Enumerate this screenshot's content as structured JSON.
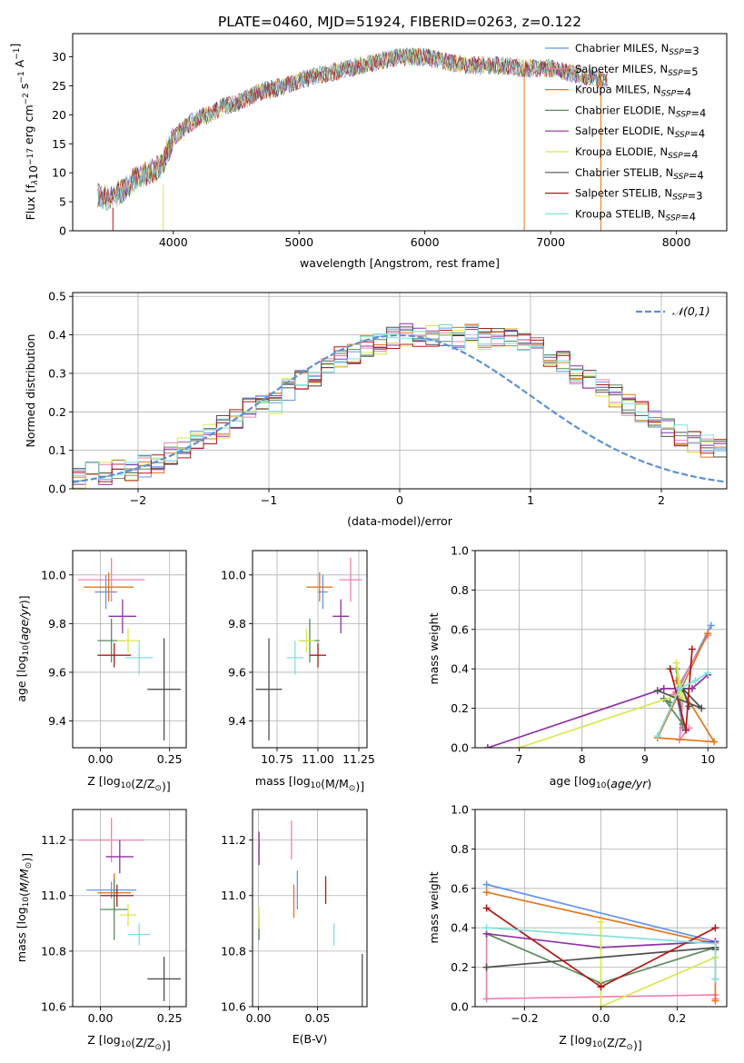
{
  "figure_title": "PLATE=0460, MJD=51924, FIBERID=0263, z=0.122",
  "colors": {
    "chabrier_miles": "#6495ED",
    "salpeter_miles": "#F080B0",
    "kroupa_miles": "#E07820",
    "chabrier_elodie": "#5A8A5A",
    "salpeter_elodie": "#9030A8",
    "kroupa_elodie": "#D8E850",
    "chabrier_stelib": "#505050",
    "salpeter_stelib": "#B01818",
    "kroupa_stelib": "#80E0E0",
    "gauss": "#6090D8",
    "grid": "#B0B0B0"
  },
  "chart_data": [
    {
      "id": "spectrum",
      "type": "line",
      "xlabel": "wavelength [Angstrom, rest frame]",
      "ylabel": "Flux [f",
      "ylabel_parts": [
        "Flux [f",
        "λ",
        "10",
        "−17",
        " erg cm",
        "−2",
        " s",
        "−1",
        " A",
        "−1",
        "]"
      ],
      "xlim": [
        3200,
        8400
      ],
      "ylim": [
        0,
        34
      ],
      "x_ticks": [
        4000,
        5000,
        6000,
        7000,
        8000
      ],
      "y_ticks": [
        0,
        5,
        10,
        15,
        20,
        25,
        30
      ],
      "grid": false,
      "legend_position": "upper-right",
      "series": [
        {
          "name": "Chabrier MILES, N",
          "sub": "SSP",
          "suffix": "=3",
          "color_key": "chabrier_miles"
        },
        {
          "name": "Salpeter MILES, N",
          "sub": "SSP",
          "suffix": "=5",
          "color_key": "salpeter_miles"
        },
        {
          "name": "Kroupa MILES, N",
          "sub": "SSP",
          "suffix": "=4",
          "color_key": "kroupa_miles"
        },
        {
          "name": "Chabrier ELODIE, N",
          "sub": "SSP",
          "suffix": "=4",
          "color_key": "chabrier_elodie"
        },
        {
          "name": "Salpeter ELODIE, N",
          "sub": "SSP",
          "suffix": "=4",
          "color_key": "salpeter_elodie"
        },
        {
          "name": "Kroupa ELODIE, N",
          "sub": "SSP",
          "suffix": "=4",
          "color_key": "kroupa_elodie"
        },
        {
          "name": "Chabrier STELIB, N",
          "sub": "SSP",
          "suffix": "=4",
          "color_key": "chabrier_stelib"
        },
        {
          "name": "Salpeter STELIB, N",
          "sub": "SSP",
          "suffix": "=3",
          "color_key": "salpeter_stelib"
        },
        {
          "name": "Kroupa STELIB, N",
          "sub": "SSP",
          "suffix": "=4",
          "color_key": "kroupa_stelib"
        }
      ],
      "continuum": {
        "x": [
          3400,
          3500,
          3600,
          3700,
          3800,
          3900,
          4000,
          4100,
          4200,
          4300,
          4400,
          4500,
          4600,
          4700,
          4800,
          4900,
          5000,
          5200,
          5400,
          5600,
          5800,
          6000,
          6200,
          6400,
          6600,
          6800,
          7000,
          7200,
          7400
        ],
        "y": [
          6,
          5.5,
          7,
          9,
          10,
          11,
          16,
          18,
          19.5,
          20,
          21.5,
          22,
          23,
          24,
          24.5,
          25,
          26,
          27,
          28,
          29,
          30,
          30,
          29,
          28.5,
          28.5,
          28,
          28,
          27,
          26
        ]
      },
      "spikes": [
        {
          "x": 3520,
          "y_min": 0,
          "y_max": 4,
          "color_key": "salpeter_stelib"
        },
        {
          "x": 3920,
          "y_min": 0,
          "y_max": 8,
          "color_key": "kroupa_elodie"
        },
        {
          "x": 6790,
          "y_min": 0,
          "y_max": 28,
          "color_key": "kroupa_miles"
        },
        {
          "x": 7400,
          "y_min": 0,
          "y_max": 27,
          "color_key": "kroupa_miles"
        }
      ]
    },
    {
      "id": "residuals",
      "type": "step-histogram",
      "xlabel": "(data-model)/error",
      "ylabel": "Normed distribution",
      "xlim": [
        -2.5,
        2.5
      ],
      "ylim": [
        0,
        0.51
      ],
      "x_ticks": [
        -2,
        -1,
        0,
        1,
        2
      ],
      "y_ticks": [
        0.0,
        0.1,
        0.2,
        0.3,
        0.4,
        0.5
      ],
      "grid": true,
      "legend": "𝒩(0,1)",
      "legend_position": "upper-right",
      "bin_width": 0.1,
      "bin_start": -2.5,
      "envelope": [
        0.03,
        0.04,
        0.04,
        0.05,
        0.05,
        0.06,
        0.07,
        0.09,
        0.11,
        0.12,
        0.14,
        0.16,
        0.18,
        0.21,
        0.23,
        0.22,
        0.26,
        0.28,
        0.29,
        0.32,
        0.34,
        0.35,
        0.37,
        0.38,
        0.39,
        0.4,
        0.39,
        0.4,
        0.4,
        0.39,
        0.41,
        0.39,
        0.4,
        0.39,
        0.38,
        0.37,
        0.34,
        0.33,
        0.3,
        0.28,
        0.26,
        0.24,
        0.22,
        0.2,
        0.18,
        0.16,
        0.14,
        0.12,
        0.11,
        0.1,
        0.09,
        0.08,
        0.08,
        0.07,
        0.06,
        0.05,
        0.05,
        0.04,
        0.03,
        0.03,
        0.02,
        0.02,
        0.02,
        0.02,
        0.01,
        0.01,
        0.01,
        0.01,
        0.01,
        0.01
      ]
    },
    {
      "id": "age_vs_Z",
      "type": "errorbar",
      "xlabel": "Z [log",
      "ylabel": "age  [log",
      "xlim": [
        -0.1,
        0.31
      ],
      "ylim": [
        9.29,
        10.1
      ],
      "x_ticks": [
        0.0,
        0.25
      ],
      "y_ticks": [
        9.4,
        9.6,
        9.8,
        10.0
      ],
      "grid": true,
      "points": [
        {
          "color_key": "chabrier_miles",
          "x": 0.02,
          "xerr": 0.04,
          "y": 9.93,
          "yerr": 0.07
        },
        {
          "color_key": "salpeter_miles",
          "x": 0.04,
          "xerr": 0.12,
          "y": 9.98,
          "yerr": 0.09
        },
        {
          "color_key": "kroupa_miles",
          "x": 0.03,
          "xerr": 0.09,
          "y": 9.95,
          "yerr": 0.06
        },
        {
          "color_key": "chabrier_elodie",
          "x": 0.04,
          "xerr": 0.05,
          "y": 9.73,
          "yerr": 0.09
        },
        {
          "color_key": "salpeter_elodie",
          "x": 0.08,
          "xerr": 0.05,
          "y": 9.83,
          "yerr": 0.07
        },
        {
          "color_key": "kroupa_elodie",
          "x": 0.1,
          "xerr": 0.04,
          "y": 9.73,
          "yerr": 0.05
        },
        {
          "color_key": "chabrier_stelib",
          "x": 0.23,
          "xerr": 0.06,
          "y": 9.53,
          "yerr": 0.21
        },
        {
          "color_key": "salpeter_stelib",
          "x": 0.05,
          "xerr": 0.06,
          "y": 9.67,
          "yerr": 0.05
        },
        {
          "color_key": "kroupa_stelib",
          "x": 0.14,
          "xerr": 0.05,
          "y": 9.66,
          "yerr": 0.07
        }
      ]
    },
    {
      "id": "age_vs_mass",
      "type": "errorbar",
      "xlabel": "mass [log",
      "xlim": [
        10.6,
        11.3
      ],
      "ylim": [
        9.29,
        10.1
      ],
      "x_ticks": [
        10.75,
        11.0,
        11.25
      ],
      "y_ticks": [
        9.4,
        9.6,
        9.8,
        10.0
      ],
      "grid": true,
      "points": [
        {
          "color_key": "chabrier_miles",
          "x": 11.03,
          "xerr": 0.03,
          "y": 9.93,
          "yerr": 0.07
        },
        {
          "color_key": "salpeter_miles",
          "x": 11.2,
          "xerr": 0.07,
          "y": 9.98,
          "yerr": 0.09
        },
        {
          "color_key": "kroupa_miles",
          "x": 11.01,
          "xerr": 0.08,
          "y": 9.95,
          "yerr": 0.06
        },
        {
          "color_key": "chabrier_elodie",
          "x": 10.95,
          "xerr": 0.06,
          "y": 9.73,
          "yerr": 0.09
        },
        {
          "color_key": "salpeter_elodie",
          "x": 11.14,
          "xerr": 0.05,
          "y": 9.83,
          "yerr": 0.07
        },
        {
          "color_key": "kroupa_elodie",
          "x": 10.93,
          "xerr": 0.05,
          "y": 9.73,
          "yerr": 0.05
        },
        {
          "color_key": "chabrier_stelib",
          "x": 10.7,
          "xerr": 0.08,
          "y": 9.53,
          "yerr": 0.21
        },
        {
          "color_key": "salpeter_stelib",
          "x": 11.0,
          "xerr": 0.05,
          "y": 9.67,
          "yerr": 0.05
        },
        {
          "color_key": "kroupa_stelib",
          "x": 10.86,
          "xerr": 0.05,
          "y": 9.66,
          "yerr": 0.07
        }
      ]
    },
    {
      "id": "weight_vs_age",
      "type": "line-markers",
      "xlabel": "age  [log",
      "ylabel": "mass weight",
      "xlim": [
        6.3,
        10.3
      ],
      "ylim": [
        0,
        1
      ],
      "x_ticks": [
        7,
        8,
        9,
        10
      ],
      "y_ticks": [
        0.0,
        0.2,
        0.4,
        0.6,
        0.8,
        1.0
      ],
      "grid": true,
      "series": [
        {
          "color_key": "chabrier_miles",
          "x": [
            10.05,
            9.5,
            9.6
          ],
          "y": [
            0.62,
            0.28,
            0.1
          ]
        },
        {
          "color_key": "salpeter_miles",
          "x": [
            10.0,
            9.45,
            9.6,
            9.55,
            9.7
          ],
          "y": [
            0.57,
            0.27,
            0.25,
            0.04,
            0.1
          ]
        },
        {
          "color_key": "kroupa_miles",
          "x": [
            10.0,
            9.2,
            10.1,
            9.5
          ],
          "y": [
            0.58,
            0.05,
            0.03,
            0.34
          ]
        },
        {
          "color_key": "chabrier_elodie",
          "x": [
            9.5,
            9.6,
            9.3,
            9.4
          ],
          "y": [
            0.4,
            0.12,
            0.25,
            0.23
          ]
        },
        {
          "color_key": "salpeter_elodie",
          "x": [
            6.5,
            9.3,
            9.75,
            10.0
          ],
          "y": [
            0.0,
            0.3,
            0.3,
            0.37
          ]
        },
        {
          "color_key": "kroupa_elodie",
          "x": [
            7.0,
            9.55,
            9.5,
            9.6
          ],
          "y": [
            0.0,
            0.27,
            0.43,
            0.25
          ]
        },
        {
          "color_key": "chabrier_stelib",
          "x": [
            9.2,
            9.9,
            9.6,
            9.7
          ],
          "y": [
            0.29,
            0.2,
            0.3,
            0.21
          ]
        },
        {
          "color_key": "salpeter_stelib",
          "x": [
            9.4,
            9.65,
            9.75
          ],
          "y": [
            0.4,
            0.09,
            0.5
          ]
        },
        {
          "color_key": "kroupa_stelib",
          "x": [
            9.2,
            9.55,
            9.8,
            10.0
          ],
          "y": [
            0.06,
            0.3,
            0.34,
            0.38
          ]
        }
      ]
    },
    {
      "id": "mass_vs_Z",
      "type": "errorbar",
      "xlabel": "Z [log",
      "ylabel": "mass [log",
      "xlim": [
        -0.1,
        0.31
      ],
      "ylim": [
        10.6,
        11.31
      ],
      "x_ticks": [
        0.0,
        0.25
      ],
      "y_ticks": [
        10.6,
        10.8,
        11.0,
        11.2
      ],
      "grid": true,
      "points": [
        {
          "color_key": "chabrier_miles",
          "x": 0.04,
          "xerr": 0.09,
          "y": 11.02,
          "yerr": 0.03
        },
        {
          "color_key": "salpeter_miles",
          "x": 0.04,
          "xerr": 0.12,
          "y": 11.2,
          "yerr": 0.08
        },
        {
          "color_key": "kroupa_miles",
          "x": 0.05,
          "xerr": 0.06,
          "y": 11.01,
          "yerr": 0.07
        },
        {
          "color_key": "chabrier_elodie",
          "x": 0.05,
          "xerr": 0.05,
          "y": 10.95,
          "yerr": 0.11
        },
        {
          "color_key": "salpeter_elodie",
          "x": 0.07,
          "xerr": 0.05,
          "y": 11.14,
          "yerr": 0.06
        },
        {
          "color_key": "kroupa_elodie",
          "x": 0.1,
          "xerr": 0.03,
          "y": 10.93,
          "yerr": 0.04
        },
        {
          "color_key": "chabrier_stelib",
          "x": 0.23,
          "xerr": 0.06,
          "y": 10.7,
          "yerr": 0.08
        },
        {
          "color_key": "salpeter_stelib",
          "x": 0.06,
          "xerr": 0.06,
          "y": 11.0,
          "yerr": 0.04
        },
        {
          "color_key": "kroupa_stelib",
          "x": 0.14,
          "xerr": 0.04,
          "y": 10.86,
          "yerr": 0.04
        }
      ]
    },
    {
      "id": "mass_vs_EBV",
      "type": "errorbar",
      "xlabel": "E(B-V)",
      "xlim": [
        -0.005,
        0.092
      ],
      "ylim": [
        10.6,
        11.31
      ],
      "x_ticks": [
        0.0,
        0.05
      ],
      "y_ticks": [
        10.6,
        10.8,
        11.0,
        11.2
      ],
      "grid": true,
      "points": [
        {
          "color_key": "chabrier_miles",
          "x": 0.033,
          "xerr": 0,
          "y": 11.02,
          "yerr": 0.07
        },
        {
          "color_key": "salpeter_miles",
          "x": 0.028,
          "xerr": 0,
          "y": 11.2,
          "yerr": 0.07
        },
        {
          "color_key": "kroupa_miles",
          "x": 0.03,
          "xerr": 0,
          "y": 10.98,
          "yerr": 0.06
        },
        {
          "color_key": "chabrier_elodie",
          "x": 0.0005,
          "xerr": 0,
          "y": 10.88,
          "yerr": 0.04
        },
        {
          "color_key": "salpeter_elodie",
          "x": 0.0005,
          "xerr": 0,
          "y": 11.17,
          "yerr": 0.06
        },
        {
          "color_key": "kroupa_elodie",
          "x": 0.0005,
          "xerr": 0,
          "y": 10.92,
          "yerr": 0.04
        },
        {
          "color_key": "chabrier_stelib",
          "x": 0.088,
          "xerr": 0,
          "y": 10.68,
          "yerr": 0.11
        },
        {
          "color_key": "salpeter_stelib",
          "x": 0.057,
          "xerr": 0,
          "y": 11.02,
          "yerr": 0.05
        },
        {
          "color_key": "kroupa_stelib",
          "x": 0.064,
          "xerr": 0,
          "y": 10.86,
          "yerr": 0.04
        }
      ]
    },
    {
      "id": "weight_vs_Z",
      "type": "line-markers",
      "xlabel": "Z [log",
      "ylabel": "mass weight",
      "xlim": [
        -0.33,
        0.33
      ],
      "ylim": [
        0,
        1
      ],
      "x_ticks": [
        -0.2,
        0.0,
        0.2
      ],
      "y_ticks": [
        0.0,
        0.2,
        0.4,
        0.6,
        0.8,
        1.0
      ],
      "grid": true,
      "series": [
        {
          "color_key": "chabrier_miles",
          "x": [
            -0.3,
            0.3,
            0.3
          ],
          "y": [
            0.62,
            0.33,
            0.14
          ]
        },
        {
          "color_key": "salpeter_miles",
          "x": [
            -0.3,
            -0.3,
            0.3,
            0.3
          ],
          "y": [
            0.37,
            0.04,
            0.06,
            0.04
          ]
        },
        {
          "color_key": "kroupa_miles",
          "x": [
            -0.3,
            0.3,
            0.3
          ],
          "y": [
            0.58,
            0.32,
            0.03
          ]
        },
        {
          "color_key": "chabrier_elodie",
          "x": [
            -0.3,
            0.0,
            0.3
          ],
          "y": [
            0.37,
            0.12,
            0.3
          ]
        },
        {
          "color_key": "salpeter_elodie",
          "x": [
            -0.3,
            0.0,
            0.3
          ],
          "y": [
            0.37,
            0.3,
            0.33
          ]
        },
        {
          "color_key": "kroupa_elodie",
          "x": [
            0.0,
            0.0,
            0.3
          ],
          "y": [
            0.43,
            0.0,
            0.25
          ]
        },
        {
          "color_key": "chabrier_stelib",
          "x": [
            -0.3,
            0.3,
            0.3
          ],
          "y": [
            0.2,
            0.3,
            0.29
          ]
        },
        {
          "color_key": "salpeter_stelib",
          "x": [
            -0.3,
            0.0,
            0.3
          ],
          "y": [
            0.5,
            0.1,
            0.4
          ]
        },
        {
          "color_key": "kroupa_stelib",
          "x": [
            -0.3,
            0.3,
            0.3
          ],
          "y": [
            0.4,
            0.32,
            0.14
          ]
        }
      ]
    }
  ]
}
